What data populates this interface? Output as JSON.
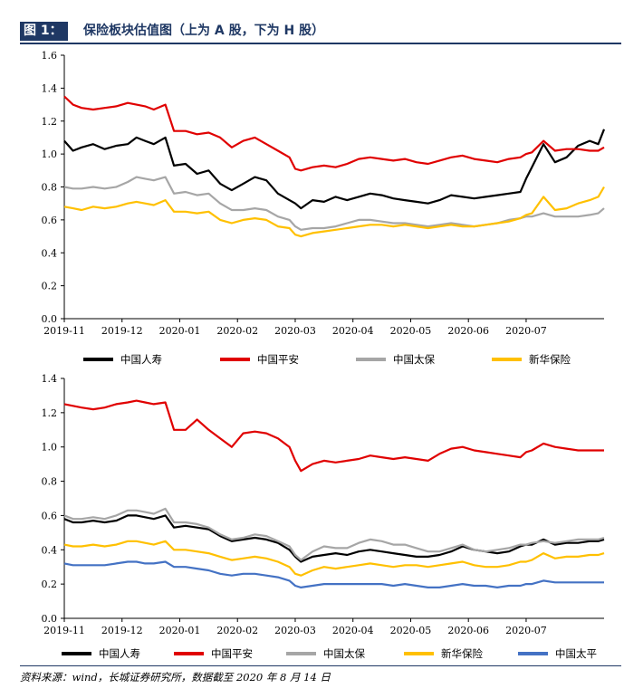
{
  "header": {
    "tag": "图 1：",
    "title": "保险板块估值图（上为 A 股，下为 H 股）"
  },
  "footer": {
    "source": "资料来源：wind，长城证券研究所，数据截至 2020 年 8 月 14 日"
  },
  "chart_data": [
    {
      "type": "line",
      "title": "A股",
      "categories": [
        "2019-11",
        "2019-12",
        "2020-01",
        "2020-02",
        "2020-03",
        "2020-04",
        "2020-05",
        "2020-06",
        "2020-07"
      ],
      "ylim": [
        0,
        1.6
      ],
      "yticks": [
        "0.0",
        "0.2",
        "0.4",
        "0.6",
        "0.8",
        "1.0",
        "1.2",
        "1.4",
        "1.6"
      ],
      "x_end": 9.35,
      "series": [
        {
          "name": "中国人寿",
          "color": "#000000",
          "x": [
            0,
            0.15,
            0.3,
            0.5,
            0.7,
            0.9,
            1.1,
            1.25,
            1.4,
            1.55,
            1.75,
            1.9,
            2.1,
            2.3,
            2.5,
            2.7,
            2.9,
            3.1,
            3.3,
            3.5,
            3.7,
            3.9,
            4.0,
            4.1,
            4.3,
            4.5,
            4.7,
            4.9,
            5.1,
            5.3,
            5.5,
            5.7,
            5.9,
            6.1,
            6.3,
            6.5,
            6.7,
            6.9,
            7.1,
            7.3,
            7.5,
            7.7,
            7.9,
            8.0,
            8.1,
            8.3,
            8.5,
            8.7,
            8.9,
            9.1,
            9.25,
            9.35
          ],
          "values": [
            1.08,
            1.02,
            1.04,
            1.06,
            1.03,
            1.05,
            1.06,
            1.1,
            1.08,
            1.06,
            1.1,
            0.93,
            0.94,
            0.88,
            0.9,
            0.82,
            0.78,
            0.82,
            0.86,
            0.84,
            0.76,
            0.72,
            0.7,
            0.67,
            0.72,
            0.71,
            0.74,
            0.72,
            0.74,
            0.76,
            0.75,
            0.73,
            0.72,
            0.71,
            0.7,
            0.72,
            0.75,
            0.74,
            0.73,
            0.74,
            0.75,
            0.76,
            0.77,
            0.85,
            0.92,
            1.06,
            0.95,
            0.98,
            1.05,
            1.08,
            1.06,
            1.15
          ]
        },
        {
          "name": "中国平安",
          "color": "#e00000",
          "x": [
            0,
            0.15,
            0.3,
            0.5,
            0.7,
            0.9,
            1.1,
            1.25,
            1.4,
            1.55,
            1.75,
            1.9,
            2.1,
            2.3,
            2.5,
            2.7,
            2.9,
            3.1,
            3.3,
            3.5,
            3.7,
            3.9,
            4.0,
            4.1,
            4.3,
            4.5,
            4.7,
            4.9,
            5.1,
            5.3,
            5.5,
            5.7,
            5.9,
            6.1,
            6.3,
            6.5,
            6.7,
            6.9,
            7.1,
            7.3,
            7.5,
            7.7,
            7.9,
            8.0,
            8.1,
            8.3,
            8.5,
            8.7,
            8.9,
            9.1,
            9.25,
            9.35
          ],
          "values": [
            1.35,
            1.3,
            1.28,
            1.27,
            1.28,
            1.29,
            1.31,
            1.3,
            1.29,
            1.27,
            1.3,
            1.14,
            1.14,
            1.12,
            1.13,
            1.1,
            1.04,
            1.08,
            1.1,
            1.06,
            1.02,
            0.98,
            0.91,
            0.9,
            0.92,
            0.93,
            0.92,
            0.94,
            0.97,
            0.98,
            0.97,
            0.96,
            0.97,
            0.95,
            0.94,
            0.96,
            0.98,
            0.99,
            0.97,
            0.96,
            0.95,
            0.97,
            0.98,
            1.0,
            1.01,
            1.08,
            1.02,
            1.03,
            1.03,
            1.02,
            1.02,
            1.04
          ]
        },
        {
          "name": "中国太保",
          "color": "#a6a6a6",
          "x": [
            0,
            0.15,
            0.3,
            0.5,
            0.7,
            0.9,
            1.1,
            1.25,
            1.4,
            1.55,
            1.75,
            1.9,
            2.1,
            2.3,
            2.5,
            2.7,
            2.9,
            3.1,
            3.3,
            3.5,
            3.7,
            3.9,
            4.0,
            4.1,
            4.3,
            4.5,
            4.7,
            4.9,
            5.1,
            5.3,
            5.5,
            5.7,
            5.9,
            6.1,
            6.3,
            6.5,
            6.7,
            6.9,
            7.1,
            7.3,
            7.5,
            7.7,
            7.9,
            8.0,
            8.1,
            8.3,
            8.5,
            8.7,
            8.9,
            9.1,
            9.25,
            9.35
          ],
          "values": [
            0.8,
            0.79,
            0.79,
            0.8,
            0.79,
            0.8,
            0.83,
            0.86,
            0.85,
            0.84,
            0.86,
            0.76,
            0.77,
            0.75,
            0.76,
            0.7,
            0.66,
            0.66,
            0.67,
            0.66,
            0.62,
            0.6,
            0.56,
            0.54,
            0.55,
            0.55,
            0.56,
            0.58,
            0.6,
            0.6,
            0.59,
            0.58,
            0.58,
            0.57,
            0.56,
            0.57,
            0.58,
            0.57,
            0.56,
            0.57,
            0.58,
            0.6,
            0.61,
            0.62,
            0.62,
            0.64,
            0.62,
            0.62,
            0.62,
            0.63,
            0.64,
            0.67
          ]
        },
        {
          "name": "新华保险",
          "color": "#ffc000",
          "x": [
            0,
            0.15,
            0.3,
            0.5,
            0.7,
            0.9,
            1.1,
            1.25,
            1.4,
            1.55,
            1.75,
            1.9,
            2.1,
            2.3,
            2.5,
            2.7,
            2.9,
            3.1,
            3.3,
            3.5,
            3.7,
            3.9,
            4.0,
            4.1,
            4.3,
            4.5,
            4.7,
            4.9,
            5.1,
            5.3,
            5.5,
            5.7,
            5.9,
            6.1,
            6.3,
            6.5,
            6.7,
            6.9,
            7.1,
            7.3,
            7.5,
            7.7,
            7.9,
            8.0,
            8.1,
            8.3,
            8.5,
            8.7,
            8.9,
            9.1,
            9.25,
            9.35
          ],
          "values": [
            0.68,
            0.67,
            0.66,
            0.68,
            0.67,
            0.68,
            0.7,
            0.71,
            0.7,
            0.69,
            0.72,
            0.65,
            0.65,
            0.64,
            0.65,
            0.6,
            0.58,
            0.6,
            0.61,
            0.6,
            0.56,
            0.55,
            0.51,
            0.5,
            0.52,
            0.53,
            0.54,
            0.55,
            0.56,
            0.57,
            0.57,
            0.56,
            0.57,
            0.56,
            0.55,
            0.56,
            0.57,
            0.56,
            0.56,
            0.57,
            0.58,
            0.59,
            0.61,
            0.63,
            0.64,
            0.74,
            0.66,
            0.67,
            0.7,
            0.72,
            0.74,
            0.8
          ]
        }
      ]
    },
    {
      "type": "line",
      "title": "H股",
      "categories": [
        "2019-11",
        "2019-12",
        "2020-01",
        "2020-02",
        "2020-03",
        "2020-04",
        "2020-05",
        "2020-06",
        "2020-07"
      ],
      "ylim": [
        0,
        1.4
      ],
      "yticks": [
        "0.0",
        "0.2",
        "0.4",
        "0.6",
        "0.8",
        "1.0",
        "1.2",
        "1.4"
      ],
      "x_end": 9.35,
      "series": [
        {
          "name": "中国人寿",
          "color": "#000000",
          "x": [
            0,
            0.15,
            0.3,
            0.5,
            0.7,
            0.9,
            1.1,
            1.25,
            1.4,
            1.55,
            1.75,
            1.9,
            2.1,
            2.3,
            2.5,
            2.7,
            2.9,
            3.1,
            3.3,
            3.5,
            3.7,
            3.9,
            4.0,
            4.1,
            4.3,
            4.5,
            4.7,
            4.9,
            5.1,
            5.3,
            5.5,
            5.7,
            5.9,
            6.1,
            6.3,
            6.5,
            6.7,
            6.9,
            7.1,
            7.3,
            7.5,
            7.7,
            7.9,
            8.0,
            8.1,
            8.3,
            8.5,
            8.7,
            8.9,
            9.1,
            9.25,
            9.35
          ],
          "values": [
            0.58,
            0.56,
            0.56,
            0.57,
            0.56,
            0.57,
            0.6,
            0.6,
            0.59,
            0.58,
            0.6,
            0.53,
            0.54,
            0.53,
            0.52,
            0.48,
            0.45,
            0.46,
            0.47,
            0.46,
            0.44,
            0.4,
            0.36,
            0.33,
            0.36,
            0.37,
            0.38,
            0.37,
            0.39,
            0.4,
            0.39,
            0.38,
            0.37,
            0.36,
            0.36,
            0.37,
            0.39,
            0.42,
            0.4,
            0.39,
            0.38,
            0.39,
            0.42,
            0.43,
            0.43,
            0.46,
            0.43,
            0.44,
            0.44,
            0.45,
            0.45,
            0.46
          ]
        },
        {
          "name": "中国平安",
          "color": "#e00000",
          "x": [
            0,
            0.15,
            0.3,
            0.5,
            0.7,
            0.9,
            1.1,
            1.25,
            1.4,
            1.55,
            1.75,
            1.9,
            2.1,
            2.3,
            2.5,
            2.7,
            2.9,
            3.1,
            3.3,
            3.5,
            3.7,
            3.9,
            4.0,
            4.1,
            4.3,
            4.5,
            4.7,
            4.9,
            5.1,
            5.3,
            5.5,
            5.7,
            5.9,
            6.1,
            6.3,
            6.5,
            6.7,
            6.9,
            7.1,
            7.3,
            7.5,
            7.7,
            7.9,
            8.0,
            8.1,
            8.3,
            8.5,
            8.7,
            8.9,
            9.1,
            9.25,
            9.35
          ],
          "values": [
            1.25,
            1.24,
            1.23,
            1.22,
            1.23,
            1.25,
            1.26,
            1.27,
            1.26,
            1.25,
            1.26,
            1.1,
            1.1,
            1.16,
            1.1,
            1.05,
            1.0,
            1.08,
            1.09,
            1.08,
            1.05,
            1.0,
            0.92,
            0.86,
            0.9,
            0.92,
            0.91,
            0.92,
            0.93,
            0.95,
            0.94,
            0.93,
            0.94,
            0.93,
            0.92,
            0.96,
            0.99,
            1.0,
            0.98,
            0.97,
            0.96,
            0.95,
            0.94,
            0.97,
            0.98,
            1.02,
            1.0,
            0.99,
            0.98,
            0.98,
            0.98,
            0.98
          ]
        },
        {
          "name": "中国太保",
          "color": "#a6a6a6",
          "x": [
            0,
            0.15,
            0.3,
            0.5,
            0.7,
            0.9,
            1.1,
            1.25,
            1.4,
            1.55,
            1.75,
            1.9,
            2.1,
            2.3,
            2.5,
            2.7,
            2.9,
            3.1,
            3.3,
            3.5,
            3.7,
            3.9,
            4.0,
            4.1,
            4.3,
            4.5,
            4.7,
            4.9,
            5.1,
            5.3,
            5.5,
            5.7,
            5.9,
            6.1,
            6.3,
            6.5,
            6.7,
            6.9,
            7.1,
            7.3,
            7.5,
            7.7,
            7.9,
            8.0,
            8.1,
            8.3,
            8.5,
            8.7,
            8.9,
            9.1,
            9.25,
            9.35
          ],
          "values": [
            0.6,
            0.58,
            0.58,
            0.59,
            0.58,
            0.6,
            0.63,
            0.63,
            0.62,
            0.61,
            0.64,
            0.56,
            0.56,
            0.55,
            0.53,
            0.49,
            0.46,
            0.47,
            0.49,
            0.48,
            0.45,
            0.42,
            0.37,
            0.34,
            0.39,
            0.42,
            0.41,
            0.41,
            0.44,
            0.46,
            0.45,
            0.43,
            0.43,
            0.41,
            0.39,
            0.39,
            0.41,
            0.43,
            0.4,
            0.39,
            0.4,
            0.41,
            0.43,
            0.43,
            0.44,
            0.45,
            0.44,
            0.45,
            0.46,
            0.46,
            0.46,
            0.47
          ]
        },
        {
          "name": "新华保险",
          "color": "#ffc000",
          "x": [
            0,
            0.15,
            0.3,
            0.5,
            0.7,
            0.9,
            1.1,
            1.25,
            1.4,
            1.55,
            1.75,
            1.9,
            2.1,
            2.3,
            2.5,
            2.7,
            2.9,
            3.1,
            3.3,
            3.5,
            3.7,
            3.9,
            4.0,
            4.1,
            4.3,
            4.5,
            4.7,
            4.9,
            5.1,
            5.3,
            5.5,
            5.7,
            5.9,
            6.1,
            6.3,
            6.5,
            6.7,
            6.9,
            7.1,
            7.3,
            7.5,
            7.7,
            7.9,
            8.0,
            8.1,
            8.3,
            8.5,
            8.7,
            8.9,
            9.1,
            9.25,
            9.35
          ],
          "values": [
            0.43,
            0.42,
            0.42,
            0.43,
            0.42,
            0.43,
            0.45,
            0.45,
            0.44,
            0.43,
            0.45,
            0.4,
            0.4,
            0.39,
            0.38,
            0.36,
            0.34,
            0.35,
            0.36,
            0.35,
            0.33,
            0.3,
            0.26,
            0.25,
            0.28,
            0.3,
            0.29,
            0.3,
            0.31,
            0.32,
            0.31,
            0.3,
            0.31,
            0.31,
            0.3,
            0.31,
            0.32,
            0.33,
            0.31,
            0.3,
            0.3,
            0.31,
            0.33,
            0.33,
            0.34,
            0.38,
            0.35,
            0.36,
            0.36,
            0.37,
            0.37,
            0.38
          ]
        },
        {
          "name": "中国太平",
          "color": "#4472c4",
          "x": [
            0,
            0.15,
            0.3,
            0.5,
            0.7,
            0.9,
            1.1,
            1.25,
            1.4,
            1.55,
            1.75,
            1.9,
            2.1,
            2.3,
            2.5,
            2.7,
            2.9,
            3.1,
            3.3,
            3.5,
            3.7,
            3.9,
            4.0,
            4.1,
            4.3,
            4.5,
            4.7,
            4.9,
            5.1,
            5.3,
            5.5,
            5.7,
            5.9,
            6.1,
            6.3,
            6.5,
            6.7,
            6.9,
            7.1,
            7.3,
            7.5,
            7.7,
            7.9,
            8.0,
            8.1,
            8.3,
            8.5,
            8.7,
            8.9,
            9.1,
            9.25,
            9.35
          ],
          "values": [
            0.32,
            0.31,
            0.31,
            0.31,
            0.31,
            0.32,
            0.33,
            0.33,
            0.32,
            0.32,
            0.33,
            0.3,
            0.3,
            0.29,
            0.28,
            0.26,
            0.25,
            0.26,
            0.26,
            0.25,
            0.24,
            0.22,
            0.19,
            0.18,
            0.19,
            0.2,
            0.2,
            0.2,
            0.2,
            0.2,
            0.2,
            0.19,
            0.2,
            0.19,
            0.18,
            0.18,
            0.19,
            0.2,
            0.19,
            0.19,
            0.18,
            0.19,
            0.19,
            0.2,
            0.2,
            0.22,
            0.21,
            0.21,
            0.21,
            0.21,
            0.21,
            0.21
          ]
        }
      ]
    }
  ]
}
